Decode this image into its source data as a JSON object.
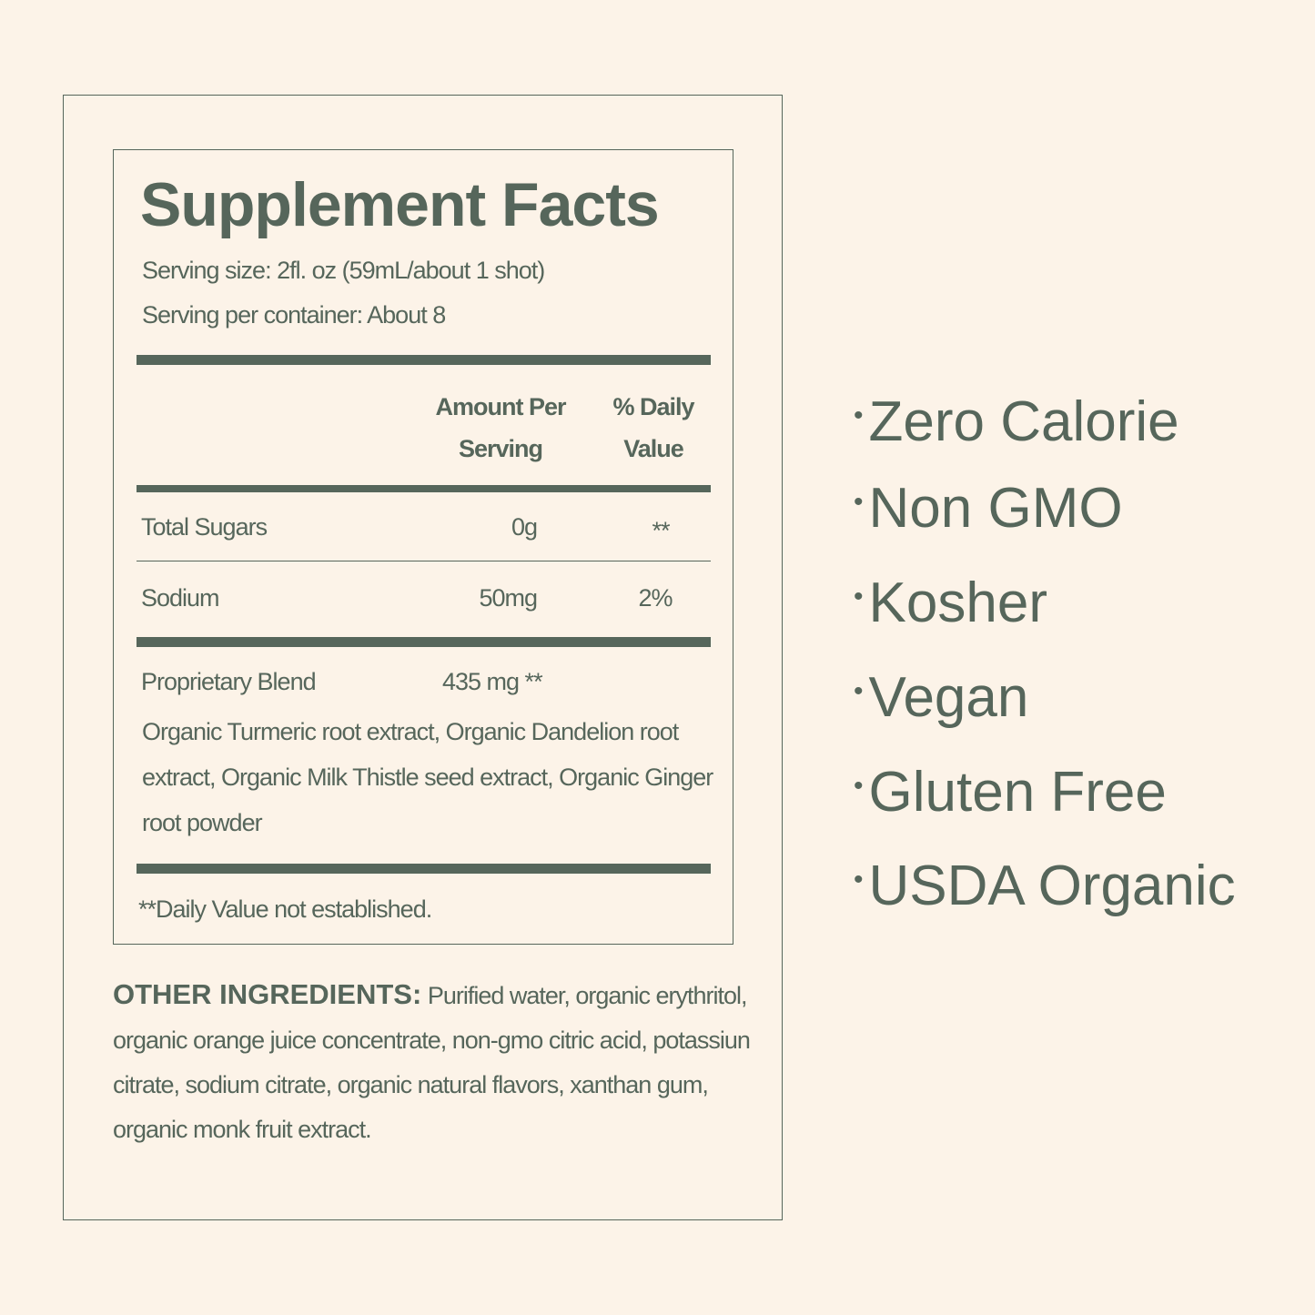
{
  "facts": {
    "title": "Supplement Facts",
    "serving_size": "Serving size: 2fl. oz (59mL/about 1 shot)",
    "servings": "Serving per container: About 8",
    "header": {
      "amount": "Amount Per Serving",
      "daily": "% Daily Value"
    },
    "rows": [
      [
        "Total Sugars",
        "0g",
        "**"
      ],
      [
        "Sodium",
        "50mg",
        "2%"
      ]
    ],
    "blend": {
      "name": "Proprietary Blend",
      "amount": "435 mg **",
      "ingredients": "Organic Turmeric root extract, Organic Dandelion root extract, Organic Milk Thistle seed extract, Organic Ginger root powder"
    },
    "footnote": "**Daily Value not established."
  },
  "other_ingredients": {
    "label": "OTHER INGREDIENTS:",
    "text": "Purified water, organic erythritol, organic orange juice concentrate, non-gmo citric acid, potassiun citrate, sodium citrate, organic natural flavors,  xanthan gum, organic monk fruit extract."
  },
  "claims": [
    "Zero Calorie",
    "Non GMO",
    "Kosher",
    "Vegan",
    "Gluten Free",
    "USDA Organic"
  ]
}
